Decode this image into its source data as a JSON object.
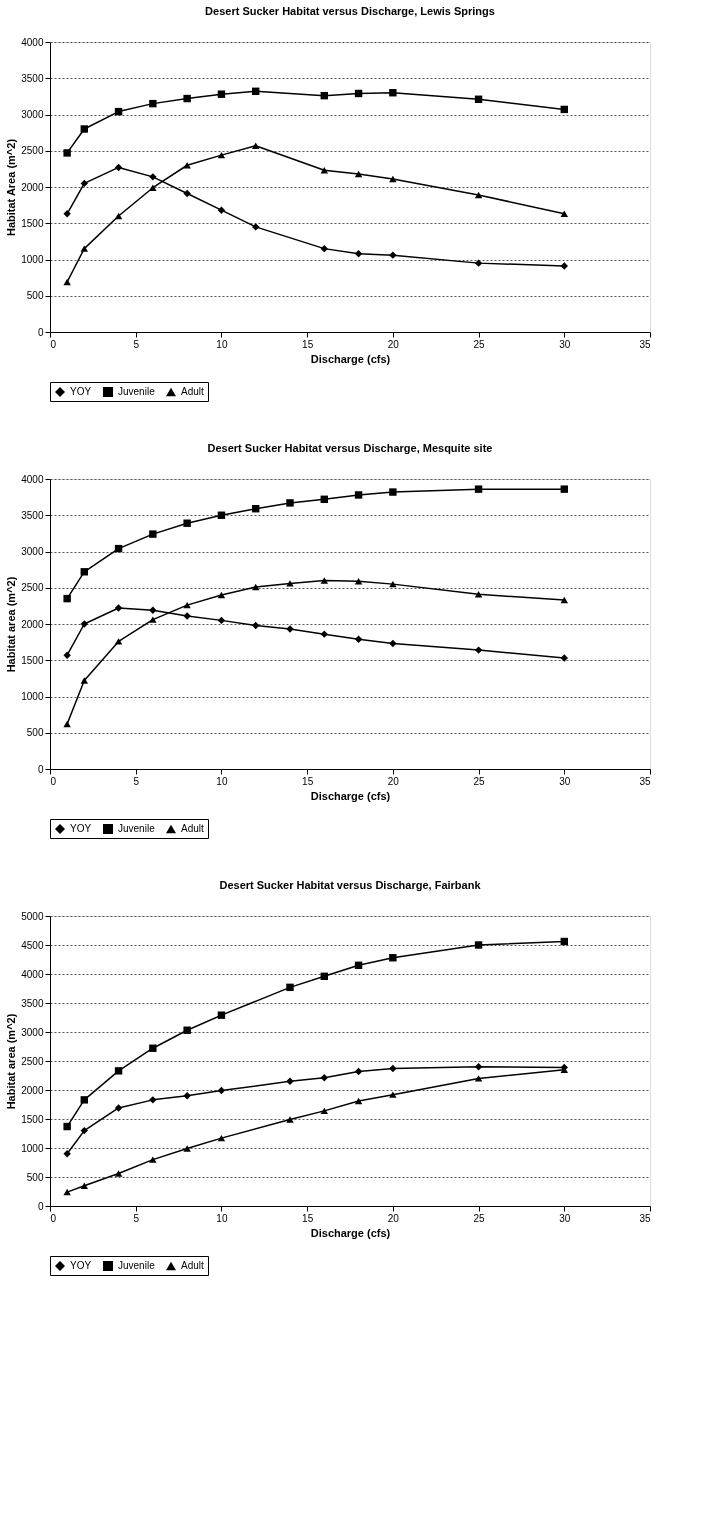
{
  "chart_data": [
    {
      "type": "line",
      "title": "Desert Sucker Habitat versus Discharge, Lewis Springs",
      "xlabel": "Discharge (cfs)",
      "ylabel": "Habitat Area (m^2)",
      "x": [
        1,
        2,
        4,
        6,
        8,
        10,
        12,
        16,
        18,
        20,
        25,
        30
      ],
      "series": [
        {
          "name": "YOY",
          "color": "#000000",
          "marker": "diamond",
          "values": [
            1630,
            2050,
            2270,
            2140,
            1910,
            1680,
            1450,
            1150,
            1080,
            1060,
            950,
            910
          ]
        },
        {
          "name": "Juvenile",
          "color": "#000000",
          "marker": "square",
          "values": [
            2470,
            2800,
            3040,
            3150,
            3220,
            3280,
            3320,
            3260,
            3290,
            3300,
            3210,
            3070
          ]
        },
        {
          "name": "Adult",
          "color": "#000000",
          "marker": "triangle",
          "values": [
            690,
            1150,
            1600,
            1990,
            2300,
            2440,
            2570,
            2230,
            2180,
            2110,
            1890,
            1630
          ]
        }
      ],
      "xlim": [
        0,
        35
      ],
      "xticks": [
        0,
        5,
        10,
        15,
        20,
        25,
        30,
        35
      ],
      "ylim": [
        0,
        4000
      ],
      "yticks": [
        0,
        500,
        1000,
        1500,
        2000,
        2500,
        3000,
        3500,
        4000
      ],
      "grid": "y",
      "legend": "bottom",
      "line_style": "solid"
    },
    {
      "type": "line",
      "title": "Desert Sucker Habitat versus Discharge, Mesquite site",
      "xlabel": "Discharge (cfs)",
      "ylabel": "Habitat area (m^2)",
      "x": [
        1,
        2,
        4,
        6,
        8,
        10,
        12,
        14,
        16,
        18,
        20,
        25,
        30
      ],
      "series": [
        {
          "name": "YOY",
          "color": "#000000",
          "marker": "diamond",
          "values": [
            1570,
            2000,
            2220,
            2190,
            2110,
            2050,
            1980,
            1930,
            1860,
            1790,
            1730,
            1640,
            1530
          ]
        },
        {
          "name": "Juvenile",
          "color": "#000000",
          "marker": "square",
          "values": [
            2350,
            2720,
            3040,
            3240,
            3390,
            3500,
            3590,
            3670,
            3720,
            3780,
            3820,
            3860,
            3860
          ]
        },
        {
          "name": "Adult",
          "color": "#000000",
          "marker": "triangle",
          "values": [
            620,
            1220,
            1760,
            2060,
            2260,
            2400,
            2510,
            2560,
            2600,
            2590,
            2550,
            2410,
            2330
          ]
        }
      ],
      "xlim": [
        0,
        35
      ],
      "xticks": [
        0,
        5,
        10,
        15,
        20,
        25,
        30,
        35
      ],
      "ylim": [
        0,
        4000
      ],
      "yticks": [
        0,
        500,
        1000,
        1500,
        2000,
        2500,
        3000,
        3500,
        4000
      ],
      "grid": "y",
      "legend": "bottom",
      "line_style": "solid"
    },
    {
      "type": "line",
      "title": "Desert Sucker Habitat versus Discharge, Fairbank",
      "xlabel": "Discharge (cfs)",
      "ylabel": "Habitat area (m^2)",
      "x": [
        1,
        2,
        4,
        6,
        8,
        10,
        14,
        16,
        18,
        20,
        25,
        30
      ],
      "series": [
        {
          "name": "YOY",
          "color": "#000000",
          "marker": "diamond",
          "values": [
            900,
            1300,
            1690,
            1830,
            1900,
            1990,
            2150,
            2210,
            2320,
            2370,
            2400,
            2390
          ]
        },
        {
          "name": "Juvenile",
          "color": "#000000",
          "marker": "square",
          "values": [
            1370,
            1830,
            2330,
            2720,
            3030,
            3290,
            3770,
            3960,
            4150,
            4280,
            4500,
            4560
          ]
        },
        {
          "name": "Adult",
          "color": "#000000",
          "marker": "triangle",
          "values": [
            240,
            350,
            560,
            800,
            990,
            1170,
            1490,
            1640,
            1810,
            1920,
            2200,
            2350
          ]
        }
      ],
      "xlim": [
        0,
        35
      ],
      "xticks": [
        0,
        5,
        10,
        15,
        20,
        25,
        30,
        35
      ],
      "ylim": [
        0,
        5000
      ],
      "yticks": [
        0,
        500,
        1000,
        1500,
        2000,
        2500,
        3000,
        3500,
        4000,
        4500,
        5000
      ],
      "grid": "y",
      "legend": "bottom",
      "line_style": "solid"
    }
  ]
}
